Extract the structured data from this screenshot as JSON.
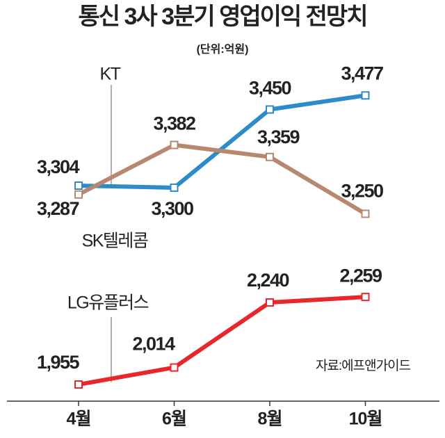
{
  "chart_data": {
    "type": "line",
    "title": "통신 3사 3분기 영업이익 전망치",
    "subtitle": "(단위:억원)",
    "source": "자료:에프앤가이드",
    "categories": [
      "4월",
      "6월",
      "8월",
      "10월"
    ],
    "series": [
      {
        "name": "KT",
        "color": "#2e8bc9",
        "values": [
          3304,
          3300,
          3450,
          3477
        ],
        "value_labels": [
          "3,304",
          "3,300",
          "3,450",
          "3,477"
        ]
      },
      {
        "name": "SK텔레콤",
        "color": "#b8876f",
        "values": [
          3287,
          3382,
          3359,
          3250
        ],
        "value_labels": [
          "3,287",
          "3,382",
          "3,359",
          "3,250"
        ]
      },
      {
        "name": "LG유플러스",
        "color": "#e8262b",
        "values": [
          1955,
          2014,
          2240,
          2259
        ],
        "value_labels": [
          "1,955",
          "2,014",
          "2,240",
          "2,259"
        ]
      }
    ]
  }
}
